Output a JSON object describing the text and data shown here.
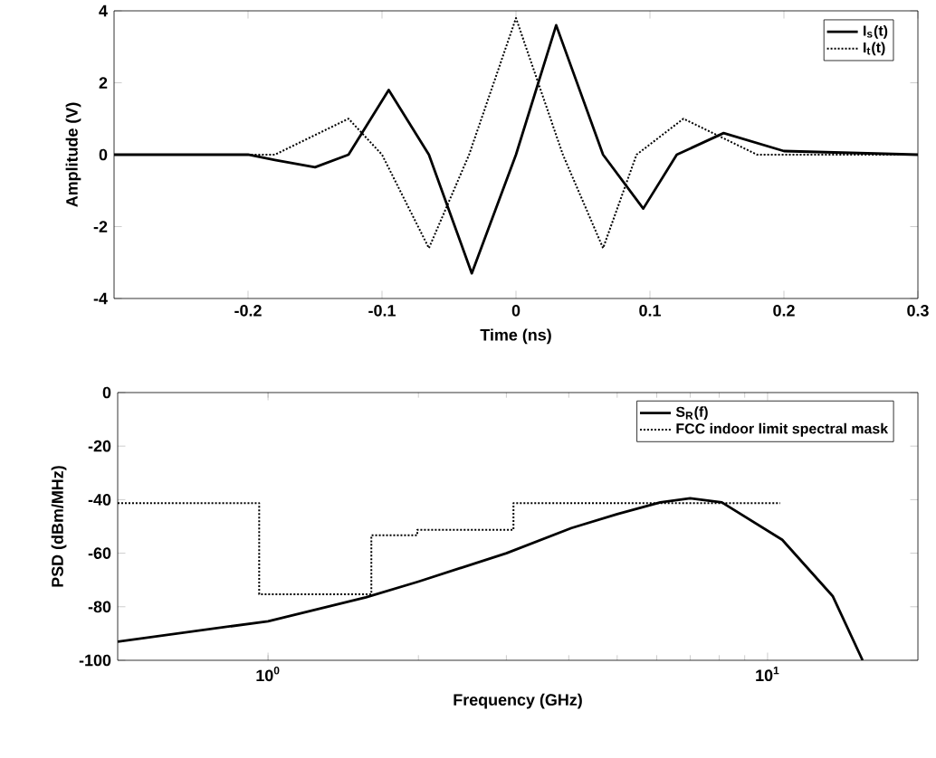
{
  "chart_data": [
    {
      "type": "line",
      "xlabel": "Time (ns)",
      "ylabel": "Amplitude (V)",
      "xlim": [
        -0.3,
        0.3
      ],
      "ylim": [
        -4,
        4
      ],
      "xticks": [
        -0.2,
        -0.1,
        0,
        0.1,
        0.2,
        0.3
      ],
      "yticks": [
        -4,
        -2,
        0,
        2,
        4
      ],
      "legend": "top right",
      "grid": false,
      "series": [
        {
          "name": "I$_{s}$(t)",
          "color": "#000000",
          "line_style": "solid",
          "x": [
            -0.3,
            -0.2,
            -0.18,
            -0.15,
            -0.125,
            -0.095,
            -0.065,
            -0.033,
            0.0,
            0.03,
            0.065,
            0.095,
            0.12,
            0.155,
            0.2,
            0.3
          ],
          "values": [
            0,
            0,
            -0.15,
            -0.35,
            0,
            1.8,
            0,
            -3.3,
            0,
            3.6,
            0,
            -1.5,
            0,
            0.6,
            0.1,
            0
          ]
        },
        {
          "name": "I$_{t}$(t)",
          "color": "#000000",
          "line_style": "dotted",
          "x": [
            -0.3,
            -0.18,
            -0.125,
            -0.1,
            -0.065,
            -0.035,
            0.0,
            0.035,
            0.065,
            0.09,
            0.125,
            0.18,
            0.3
          ],
          "values": [
            0,
            0,
            1.0,
            0,
            -2.6,
            0,
            3.8,
            0,
            -2.6,
            0,
            1.0,
            0,
            0
          ]
        }
      ]
    },
    {
      "type": "line",
      "log": "x",
      "xlabel": "Frequency (GHz)",
      "ylabel": "PSD (dBm/MHz)",
      "xlim": [
        0.5,
        20
      ],
      "ylim": [
        -100,
        0
      ],
      "xticks": [
        {
          "value": 1,
          "label": "10$^{0}$"
        },
        {
          "value": 10,
          "label": "10$^{1}$"
        }
      ],
      "yticks": [
        -100,
        -80,
        -60,
        -40,
        -20,
        0
      ],
      "legend": "top right",
      "grid": false,
      "series": [
        {
          "name": "S$_{R}$(f)",
          "color": "#000000",
          "line_style": "solid",
          "x": [
            0.5,
            1.0,
            1.57,
            2.0,
            3.0,
            4.05,
            5.0,
            6.1,
            7.0,
            8.1,
            10.7,
            13.5,
            15.5
          ],
          "values": [
            -93,
            -85.4,
            -76.5,
            -70.6,
            -60,
            -50.6,
            -45.4,
            -41,
            -39.5,
            -41,
            -55,
            -76,
            -100
          ]
        },
        {
          "name": "FCC indoor limit spectral mask",
          "color": "#000000",
          "line_style": "dotted",
          "x": [
            0.5,
            0.96,
            0.96,
            1.61,
            1.61,
            1.99,
            1.99,
            3.1,
            3.1,
            10.6
          ],
          "values": [
            -41.3,
            -41.3,
            -75.3,
            -75.3,
            -53.3,
            -53.3,
            -51.3,
            -51.3,
            -41.3,
            -41.3
          ]
        }
      ]
    }
  ]
}
